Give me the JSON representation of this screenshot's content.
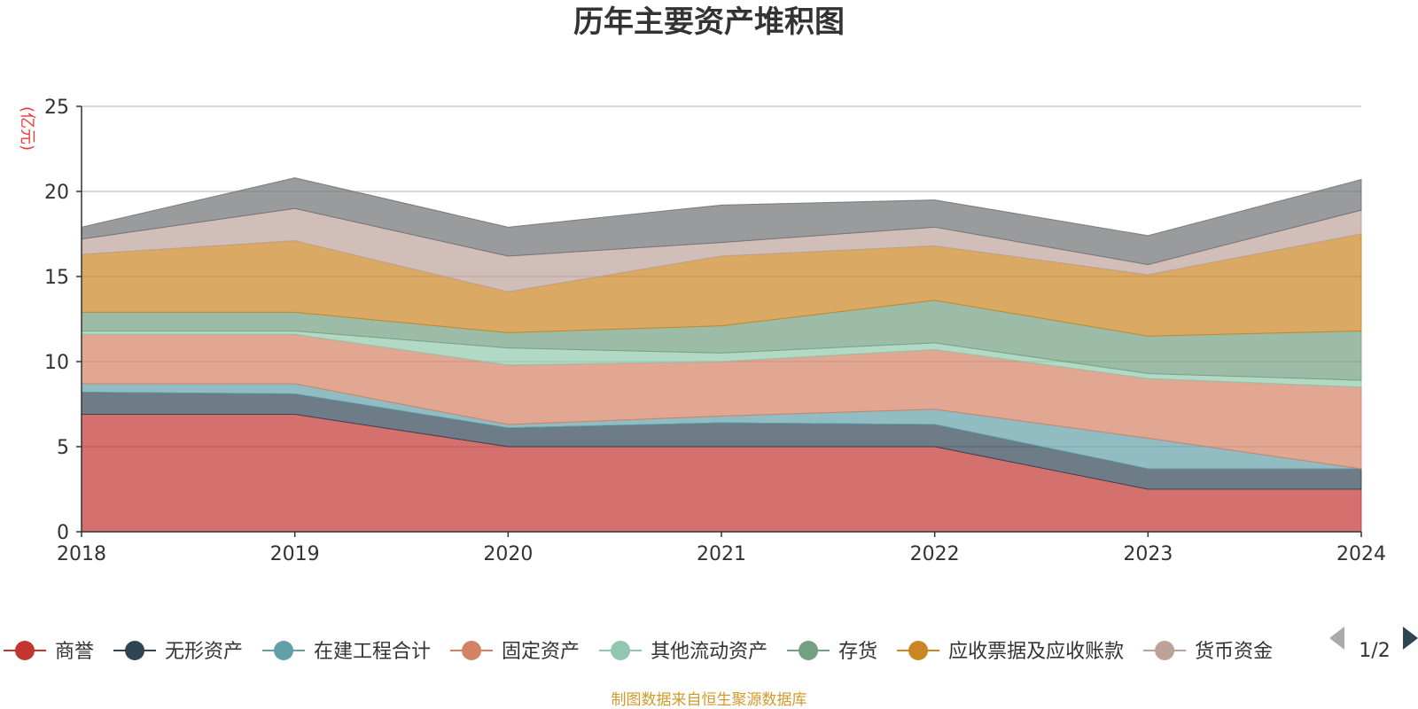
{
  "chart_data": {
    "type": "area",
    "stacked": true,
    "title": "历年主要资产堆积图",
    "ylabel": "(亿元)",
    "ylim": [
      0,
      25
    ],
    "yticks": [
      0,
      5,
      10,
      15,
      20,
      25
    ],
    "grid": true,
    "categories": [
      "2018",
      "2019",
      "2020",
      "2021",
      "2022",
      "2023",
      "2024"
    ],
    "series": [
      {
        "name": "商誉",
        "color": "#c23531",
        "values": [
          6.9,
          6.9,
          5.0,
          5.0,
          5.0,
          2.5,
          2.5
        ]
      },
      {
        "name": "无形资产",
        "color": "#2f4554",
        "values": [
          1.3,
          1.2,
          1.1,
          1.4,
          1.3,
          1.2,
          1.2
        ]
      },
      {
        "name": "在建工程合计",
        "color": "#61a0a8",
        "values": [
          0.5,
          0.6,
          0.2,
          0.4,
          0.9,
          1.8,
          0.0
        ]
      },
      {
        "name": "固定资产",
        "color": "#d48265",
        "values": [
          2.9,
          2.9,
          3.5,
          3.2,
          3.5,
          3.5,
          4.8
        ]
      },
      {
        "name": "其他流动资产",
        "color": "#91c7ae",
        "values": [
          0.2,
          0.2,
          1.0,
          0.5,
          0.4,
          0.3,
          0.4
        ]
      },
      {
        "name": "存货",
        "color": "#749f83",
        "values": [
          1.1,
          1.1,
          0.9,
          1.6,
          2.5,
          2.2,
          2.9
        ]
      },
      {
        "name": "应收票据及应收账款",
        "color": "#ca8622",
        "values": [
          3.4,
          4.2,
          2.4,
          4.1,
          3.2,
          3.6,
          5.7
        ]
      },
      {
        "name": "货币资金",
        "color": "#bda29a",
        "values": [
          0.9,
          1.9,
          2.1,
          0.8,
          1.1,
          0.6,
          1.4
        ]
      },
      {
        "name": "",
        "color": "#6e7074",
        "values": [
          0.7,
          1.8,
          1.7,
          2.2,
          1.6,
          1.7,
          1.8
        ]
      }
    ]
  },
  "legend": {
    "items": [
      {
        "label": "商誉",
        "color": "#c23531"
      },
      {
        "label": "无形资产",
        "color": "#2f4554"
      },
      {
        "label": "在建工程合计",
        "color": "#61a0a8"
      },
      {
        "label": "固定资产",
        "color": "#d48265"
      },
      {
        "label": "其他流动资产",
        "color": "#91c7ae"
      },
      {
        "label": "存货",
        "color": "#749f83"
      },
      {
        "label": "应收票据及应收账款",
        "color": "#ca8622"
      },
      {
        "label": "货币资金",
        "color": "#bda29a"
      }
    ],
    "page_indicator": "1/2"
  },
  "source_note": "制图数据来自恒生聚源数据库",
  "colors": {
    "ylabel": "#e83a3a",
    "source": "#d19a2a",
    "axis": "#333333",
    "grid": "#cccccc"
  }
}
